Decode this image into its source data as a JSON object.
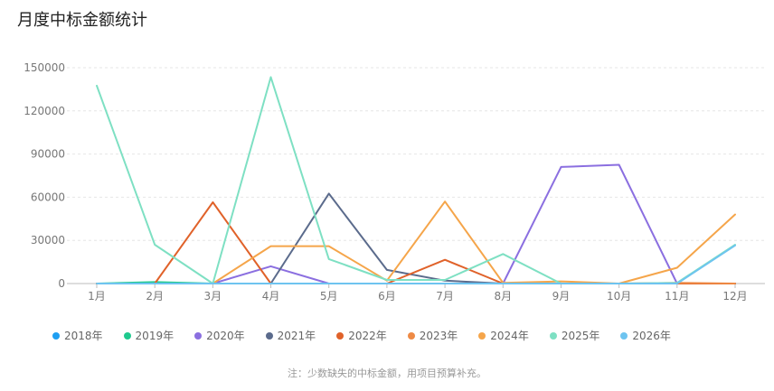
{
  "title": "月度中标金额统计",
  "note": "注：少数缺失的中标金额，用项目预算补充。",
  "chart_data": {
    "type": "line",
    "categories": [
      "1月",
      "2月",
      "3月",
      "4月",
      "5月",
      "6月",
      "7月",
      "8月",
      "9月",
      "10月",
      "11月",
      "12月"
    ],
    "ylim": [
      0,
      150000
    ],
    "yticks": [
      0,
      30000,
      60000,
      90000,
      120000,
      150000
    ],
    "ytick_labels": [
      "0",
      "30000",
      "60000",
      "90000",
      "120000",
      "150000"
    ],
    "grid": true,
    "legend_position": "bottom",
    "series": [
      {
        "name": "2018年",
        "color": "#1e9ff2",
        "values": [
          0,
          0,
          0,
          0,
          0,
          0,
          0,
          0,
          0,
          0,
          0,
          0
        ]
      },
      {
        "name": "2019年",
        "color": "#1fc98e",
        "values": [
          0,
          1000,
          0,
          0,
          0,
          0,
          0,
          0,
          0,
          0,
          0,
          0
        ]
      },
      {
        "name": "2020年",
        "color": "#8b6fe0",
        "values": [
          0,
          0,
          0,
          12000,
          0,
          0,
          0,
          0,
          81000,
          82500,
          0,
          0
        ]
      },
      {
        "name": "2021年",
        "color": "#5b6b8c",
        "values": [
          0,
          0,
          0,
          0,
          62500,
          9500,
          2000,
          0,
          0,
          0,
          0,
          0
        ]
      },
      {
        "name": "2022年",
        "color": "#e0622a",
        "values": [
          0,
          0,
          56500,
          0,
          0,
          0,
          16500,
          0,
          0,
          0,
          0,
          0
        ]
      },
      {
        "name": "2023年",
        "color": "#ee8a45",
        "values": [
          0,
          0,
          0,
          0,
          0,
          0,
          0,
          0,
          0,
          0,
          500,
          0
        ]
      },
      {
        "name": "2024年",
        "color": "#f5a54a",
        "values": [
          0,
          0,
          0,
          26000,
          26000,
          2000,
          57000,
          500,
          1500,
          0,
          11000,
          48000
        ]
      },
      {
        "name": "2025年",
        "color": "#7ee0c3",
        "values": [
          137500,
          27000,
          0,
          143500,
          17000,
          2500,
          2500,
          20500,
          0,
          0,
          500,
          27000
        ]
      },
      {
        "name": "2026年",
        "color": "#6ec4f0",
        "values": [
          0,
          0,
          0,
          0,
          0,
          0,
          0,
          0,
          0,
          0,
          0,
          26500
        ]
      }
    ]
  }
}
